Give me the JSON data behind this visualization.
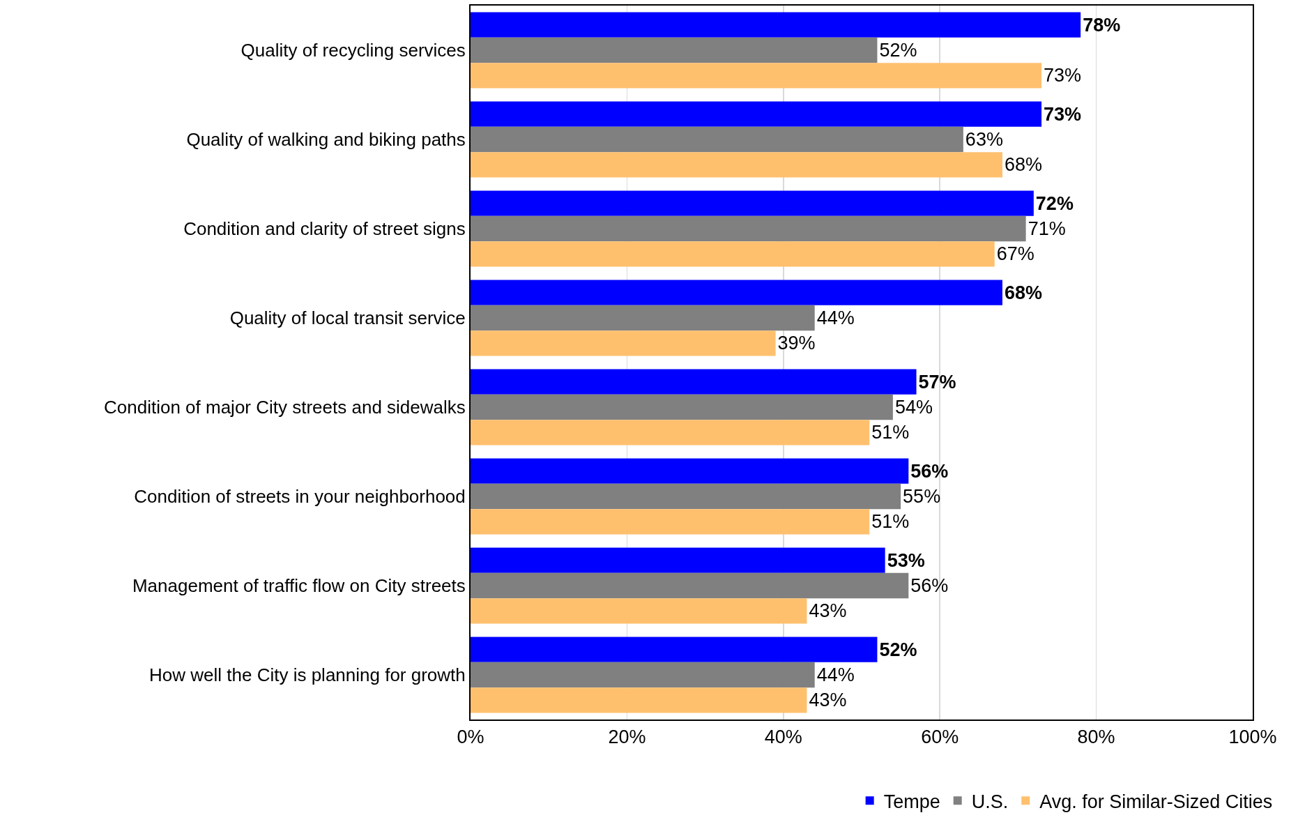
{
  "chart_data": {
    "type": "bar",
    "orientation": "horizontal",
    "categories": [
      "Quality of recycling services",
      "Quality of walking and biking paths",
      "Condition and clarity of street signs",
      "Quality of local transit service",
      "Condition of major City streets and sidewalks",
      "Condition of streets in your neighborhood",
      "Management of traffic flow on City streets",
      "How well the City is planning for growth"
    ],
    "series": [
      {
        "name": "Tempe",
        "color": "#0000ff",
        "values": [
          78,
          73,
          72,
          68,
          57,
          56,
          53,
          52
        ],
        "value_labels": [
          "78%",
          "73%",
          "72%",
          "68%",
          "57%",
          "56%",
          "53%",
          "52%"
        ]
      },
      {
        "name": "U.S.",
        "color": "#808080",
        "values": [
          52,
          63,
          71,
          44,
          54,
          55,
          56,
          44
        ],
        "value_labels": [
          "52%",
          "63%",
          "71%",
          "44%",
          "54%",
          "55%",
          "56%",
          "44%"
        ]
      },
      {
        "name": "Avg. for Similar-Sized Cities",
        "color": "#ffc06e",
        "values": [
          73,
          68,
          67,
          39,
          51,
          51,
          43,
          43
        ],
        "value_labels": [
          "73%",
          "68%",
          "67%",
          "39%",
          "51%",
          "51%",
          "43%",
          "43%"
        ]
      }
    ],
    "xlim": [
      0,
      100
    ],
    "xticks": [
      {
        "value": 0,
        "label": "0%"
      },
      {
        "value": 20,
        "label": "20%"
      },
      {
        "value": 40,
        "label": "40%"
      },
      {
        "value": 60,
        "label": "60%"
      },
      {
        "value": 80,
        "label": "80%"
      },
      {
        "value": 100,
        "label": "100%"
      }
    ],
    "grid": "x",
    "legend": "bottom right"
  }
}
